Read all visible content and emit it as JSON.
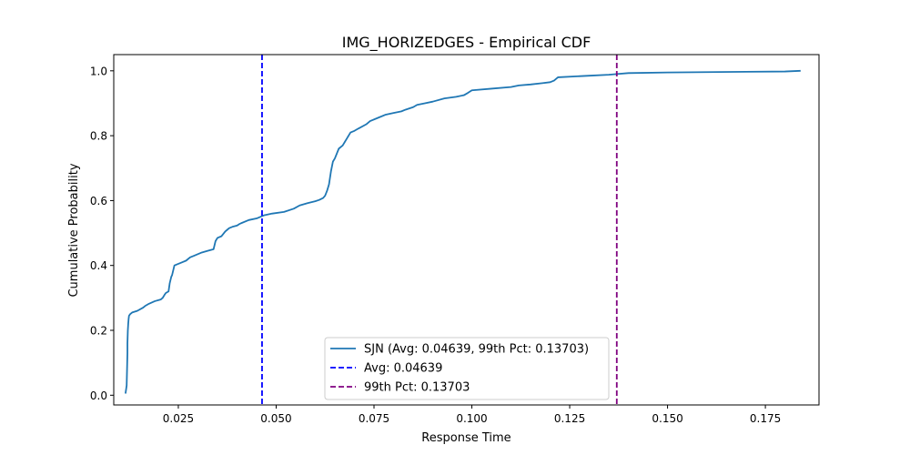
{
  "chart_data": {
    "type": "line",
    "title": "IMG_HORIZEDGES - Empirical CDF",
    "xlabel": "Response Time",
    "ylabel": "Cumulative Probability",
    "xlim": [
      0.0085,
      0.1887
    ],
    "ylim": [
      -0.03,
      1.05
    ],
    "xticks": [
      0.025,
      0.05,
      0.075,
      0.1,
      0.125,
      0.15,
      0.175
    ],
    "xtick_labels": [
      "0.025",
      "0.050",
      "0.075",
      "0.100",
      "0.125",
      "0.150",
      "0.175"
    ],
    "yticks": [
      0.0,
      0.2,
      0.4,
      0.6,
      0.8,
      1.0
    ],
    "ytick_labels": [
      "0.0",
      "0.2",
      "0.4",
      "0.6",
      "0.8",
      "1.0"
    ],
    "grid": false,
    "legend_position": "lower-center",
    "series": [
      {
        "name": "SJN (Avg: 0.04639, 99th Pct: 0.13703)",
        "color": "#1f77b4",
        "style": "solid",
        "x": [
          0.0115,
          0.0118,
          0.0119,
          0.012,
          0.012,
          0.0121,
          0.0122,
          0.0123,
          0.0124,
          0.0127,
          0.0132,
          0.0145,
          0.016,
          0.0165,
          0.0175,
          0.019,
          0.0205,
          0.021,
          0.0215,
          0.0218,
          0.0225,
          0.0228,
          0.0232,
          0.0234,
          0.024,
          0.026,
          0.027,
          0.028,
          0.029,
          0.031,
          0.0325,
          0.034,
          0.0345,
          0.035,
          0.036,
          0.037,
          0.0375,
          0.038,
          0.039,
          0.04,
          0.0405,
          0.041,
          0.043,
          0.045,
          0.047,
          0.049,
          0.052,
          0.0545,
          0.056,
          0.058,
          0.06,
          0.061,
          0.062,
          0.0625,
          0.063,
          0.0635,
          0.064,
          0.0645,
          0.065,
          0.066,
          0.067,
          0.0675,
          0.068,
          0.069,
          0.07,
          0.071,
          0.073,
          0.074,
          0.076,
          0.078,
          0.08,
          0.082,
          0.083,
          0.085,
          0.086,
          0.088,
          0.09,
          0.093,
          0.096,
          0.098,
          0.099,
          0.1,
          0.105,
          0.11,
          0.112,
          0.115,
          0.118,
          0.12,
          0.121,
          0.122,
          0.13,
          0.135,
          0.137,
          0.14,
          0.15,
          0.16,
          0.17,
          0.18,
          0.184
        ],
        "y": [
          0.005,
          0.03,
          0.08,
          0.13,
          0.16,
          0.2,
          0.22,
          0.235,
          0.245,
          0.25,
          0.255,
          0.26,
          0.27,
          0.275,
          0.282,
          0.29,
          0.295,
          0.3,
          0.31,
          0.315,
          0.32,
          0.345,
          0.365,
          0.37,
          0.4,
          0.41,
          0.415,
          0.425,
          0.43,
          0.44,
          0.445,
          0.45,
          0.475,
          0.485,
          0.49,
          0.505,
          0.51,
          0.515,
          0.52,
          0.523,
          0.527,
          0.53,
          0.54,
          0.545,
          0.555,
          0.56,
          0.565,
          0.575,
          0.585,
          0.592,
          0.598,
          0.602,
          0.608,
          0.615,
          0.63,
          0.65,
          0.69,
          0.72,
          0.73,
          0.76,
          0.77,
          0.78,
          0.79,
          0.81,
          0.815,
          0.822,
          0.835,
          0.845,
          0.855,
          0.865,
          0.87,
          0.875,
          0.88,
          0.888,
          0.895,
          0.9,
          0.905,
          0.915,
          0.92,
          0.925,
          0.932,
          0.94,
          0.945,
          0.95,
          0.955,
          0.958,
          0.962,
          0.965,
          0.97,
          0.98,
          0.985,
          0.988,
          0.99,
          0.993,
          0.995,
          0.996,
          0.997,
          0.998,
          1.0
        ]
      }
    ],
    "reference_lines": [
      {
        "name": "Avg: 0.04639",
        "x": 0.04639,
        "color": "#0000ff",
        "style": "dashed"
      },
      {
        "name": "99th Pct: 0.13703",
        "x": 0.13703,
        "color": "#800080",
        "style": "dashed"
      }
    ]
  }
}
